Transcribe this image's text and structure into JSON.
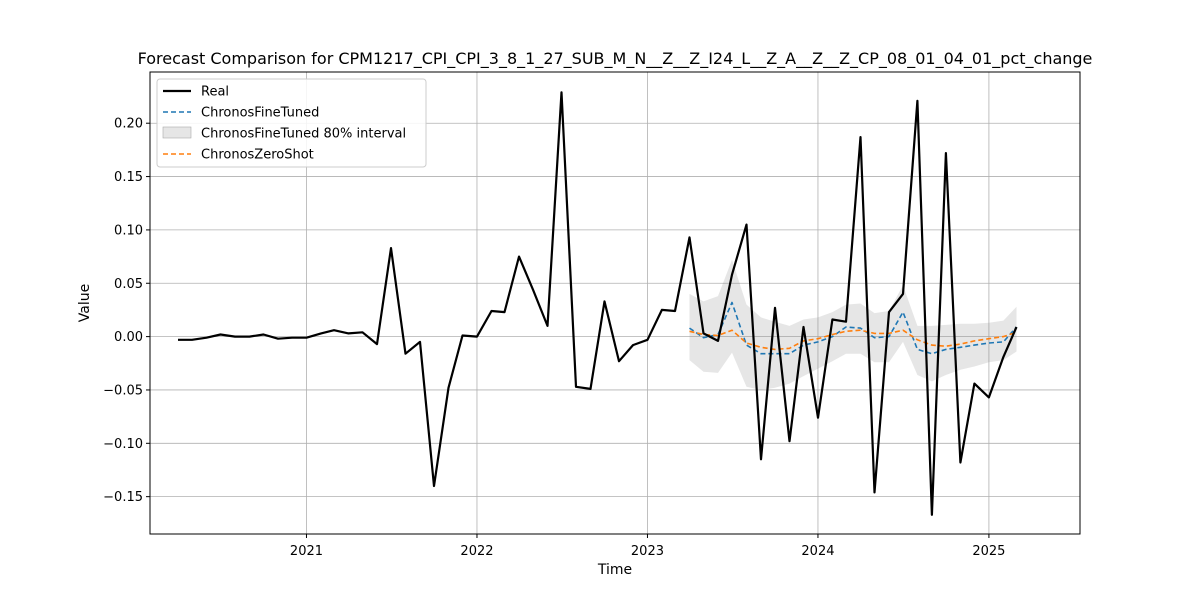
{
  "chart_data": {
    "type": "line",
    "title": "Forecast Comparison for CPM1217_CPI_CPI_3_8_1_27_SUB_M_N__Z__Z_I24_L__Z_A__Z__Z_CP_08_01_04_01_pct_change",
    "xlabel": "Time",
    "ylabel": "Value",
    "xlim": [
      "2020-02-01",
      "2025-07-15"
    ],
    "ylim": [
      -0.185,
      0.248
    ],
    "x_ticks": [
      {
        "value": "2021-01-01",
        "label": "2021"
      },
      {
        "value": "2022-01-01",
        "label": "2022"
      },
      {
        "value": "2023-01-01",
        "label": "2023"
      },
      {
        "value": "2024-01-01",
        "label": "2024"
      },
      {
        "value": "2025-01-01",
        "label": "2025"
      }
    ],
    "y_ticks": [
      -0.15,
      -0.1,
      -0.05,
      0.0,
      0.05,
      0.1,
      0.15,
      0.2
    ],
    "y_tick_labels": [
      "−0.15",
      "−0.10",
      "−0.05",
      "0.00",
      "0.05",
      "0.10",
      "0.15",
      "0.20"
    ],
    "grid": true,
    "legend_position": "top-left",
    "series": [
      {
        "name": "Real",
        "color": "#000000",
        "style": "solid",
        "x": [
          "2020-04",
          "2020-05",
          "2020-06",
          "2020-07",
          "2020-08",
          "2020-09",
          "2020-10",
          "2020-11",
          "2020-12",
          "2021-01",
          "2021-02",
          "2021-03",
          "2021-04",
          "2021-05",
          "2021-06",
          "2021-07",
          "2021-08",
          "2021-09",
          "2021-10",
          "2021-11",
          "2021-12",
          "2022-01",
          "2022-02",
          "2022-03",
          "2022-04",
          "2022-05",
          "2022-06",
          "2022-07",
          "2022-08",
          "2022-09",
          "2022-10",
          "2022-11",
          "2022-12",
          "2023-01",
          "2023-02",
          "2023-03",
          "2023-04",
          "2023-05",
          "2023-06",
          "2023-07",
          "2023-08",
          "2023-09",
          "2023-10",
          "2023-11",
          "2023-12",
          "2024-01",
          "2024-02",
          "2024-03",
          "2024-04",
          "2024-05",
          "2024-06",
          "2024-07",
          "2024-08",
          "2024-09",
          "2024-10",
          "2024-11",
          "2024-12",
          "2025-01",
          "2025-02",
          "2025-03"
        ],
        "values": [
          -0.003,
          -0.003,
          -0.001,
          0.002,
          0.0,
          0.0,
          0.002,
          -0.002,
          -0.001,
          -0.001,
          0.003,
          0.006,
          0.003,
          0.004,
          -0.007,
          0.083,
          -0.016,
          -0.005,
          -0.14,
          -0.048,
          0.001,
          0.0,
          0.024,
          0.023,
          0.075,
          0.044,
          0.01,
          0.229,
          -0.047,
          -0.049,
          0.033,
          -0.023,
          -0.008,
          -0.003,
          0.025,
          0.024,
          0.093,
          0.003,
          -0.004,
          0.058,
          0.105,
          -0.115,
          0.027,
          -0.098,
          0.009,
          -0.076,
          0.016,
          0.014,
          0.187,
          -0.146,
          0.023,
          0.04,
          0.221,
          -0.167,
          0.172,
          -0.118,
          -0.044,
          -0.057,
          -0.019,
          0.009
        ]
      },
      {
        "name": "ChronosFineTuned",
        "color": "#1f77b4",
        "style": "dashed",
        "x": [
          "2023-04",
          "2023-05",
          "2023-06",
          "2023-07",
          "2023-08",
          "2023-09",
          "2023-10",
          "2023-11",
          "2023-12",
          "2024-01",
          "2024-02",
          "2024-03",
          "2024-04",
          "2024-05",
          "2024-06",
          "2024-07",
          "2024-08",
          "2024-09",
          "2024-10",
          "2024-11",
          "2024-12",
          "2025-01",
          "2025-02",
          "2025-03"
        ],
        "values": [
          0.008,
          -0.001,
          0.002,
          0.032,
          -0.008,
          -0.016,
          -0.016,
          -0.016,
          -0.008,
          -0.005,
          0.0,
          0.009,
          0.008,
          -0.001,
          0.0,
          0.023,
          -0.012,
          -0.016,
          -0.012,
          -0.01,
          -0.008,
          -0.006,
          -0.005,
          0.009
        ]
      },
      {
        "name": "ChronosFineTuned 80% interval",
        "color": "#d3d3d3",
        "style": "band",
        "x": [
          "2023-04",
          "2023-05",
          "2023-06",
          "2023-07",
          "2023-08",
          "2023-09",
          "2023-10",
          "2023-11",
          "2023-12",
          "2024-01",
          "2024-02",
          "2024-03",
          "2024-04",
          "2024-05",
          "2024-06",
          "2024-07",
          "2024-08",
          "2024-09",
          "2024-10",
          "2024-11",
          "2024-12",
          "2025-01",
          "2025-02",
          "2025-03"
        ],
        "lower": [
          -0.022,
          -0.033,
          -0.034,
          -0.015,
          -0.047,
          -0.05,
          -0.048,
          -0.044,
          -0.037,
          -0.03,
          -0.023,
          -0.016,
          -0.016,
          -0.024,
          -0.024,
          -0.005,
          -0.036,
          -0.042,
          -0.036,
          -0.031,
          -0.028,
          -0.024,
          -0.022,
          -0.014
        ],
        "upper": [
          0.04,
          0.033,
          0.038,
          0.072,
          0.03,
          0.018,
          0.014,
          0.01,
          0.016,
          0.018,
          0.023,
          0.03,
          0.031,
          0.022,
          0.024,
          0.048,
          0.01,
          0.01,
          0.011,
          0.012,
          0.012,
          0.013,
          0.015,
          0.028
        ]
      },
      {
        "name": "ChronosZeroShot",
        "color": "#ff7f0e",
        "style": "dashed",
        "x": [
          "2023-04",
          "2023-05",
          "2023-06",
          "2023-07",
          "2023-08",
          "2023-09",
          "2023-10",
          "2023-11",
          "2023-12",
          "2024-01",
          "2024-02",
          "2024-03",
          "2024-04",
          "2024-05",
          "2024-06",
          "2024-07",
          "2024-08",
          "2024-09",
          "2024-10",
          "2024-11",
          "2024-12",
          "2025-01",
          "2025-02",
          "2025-03"
        ],
        "values": [
          0.005,
          0.002,
          0.001,
          0.006,
          -0.006,
          -0.01,
          -0.012,
          -0.011,
          -0.004,
          -0.002,
          0.002,
          0.005,
          0.006,
          0.003,
          0.003,
          0.006,
          -0.003,
          -0.008,
          -0.009,
          -0.007,
          -0.004,
          -0.002,
          0.0,
          0.004
        ]
      }
    ],
    "legend": [
      {
        "label": "Real",
        "kind": "line",
        "color": "#000000",
        "dash": false
      },
      {
        "label": "ChronosFineTuned",
        "kind": "line",
        "color": "#1f77b4",
        "dash": true
      },
      {
        "label": "ChronosFineTuned 80% interval",
        "kind": "patch",
        "color": "#d3d3d3",
        "dash": false
      },
      {
        "label": "ChronosZeroShot",
        "kind": "line",
        "color": "#ff7f0e",
        "dash": true
      }
    ]
  }
}
